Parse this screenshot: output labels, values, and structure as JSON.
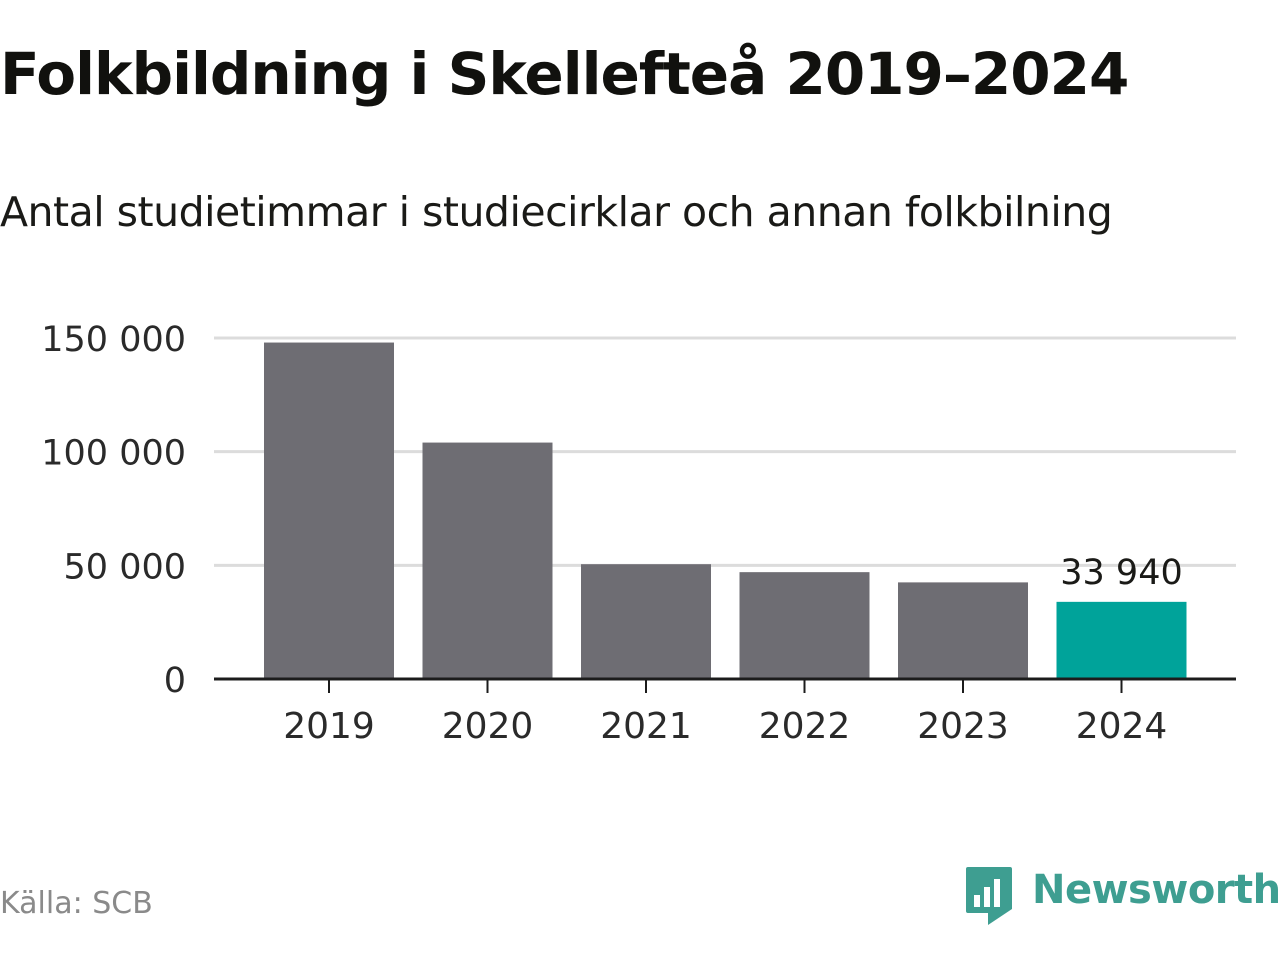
{
  "title": "Folkbildning i Skellefteå 2019–2024",
  "subtitle": "Antal studietimmar i studiecirklar och annan folkbilning",
  "source": "Källa: SCB",
  "brand": {
    "name": "Newsworthy",
    "icon": "newsworthy-logo-icon",
    "color": "#3e9e91"
  },
  "colors": {
    "bar": "#6e6d73",
    "highlight": "#00a39a",
    "grid": "#dcdcdc",
    "axis": "#1c1c1c"
  },
  "chart_data": {
    "type": "bar",
    "categories": [
      "2019",
      "2020",
      "2021",
      "2022",
      "2023",
      "2024"
    ],
    "values": [
      148000,
      104000,
      50500,
      47000,
      42500,
      33940
    ],
    "highlight_index": 5,
    "data_labels": [
      {
        "index": 5,
        "text": "33 940"
      }
    ],
    "yticks": [
      {
        "value": 0,
        "label": "0"
      },
      {
        "value": 50000,
        "label": "50 000"
      },
      {
        "value": 100000,
        "label": "100 000"
      },
      {
        "value": 150000,
        "label": "150 000"
      }
    ],
    "ylim": [
      0,
      150000
    ],
    "grid": true,
    "legend": false
  }
}
